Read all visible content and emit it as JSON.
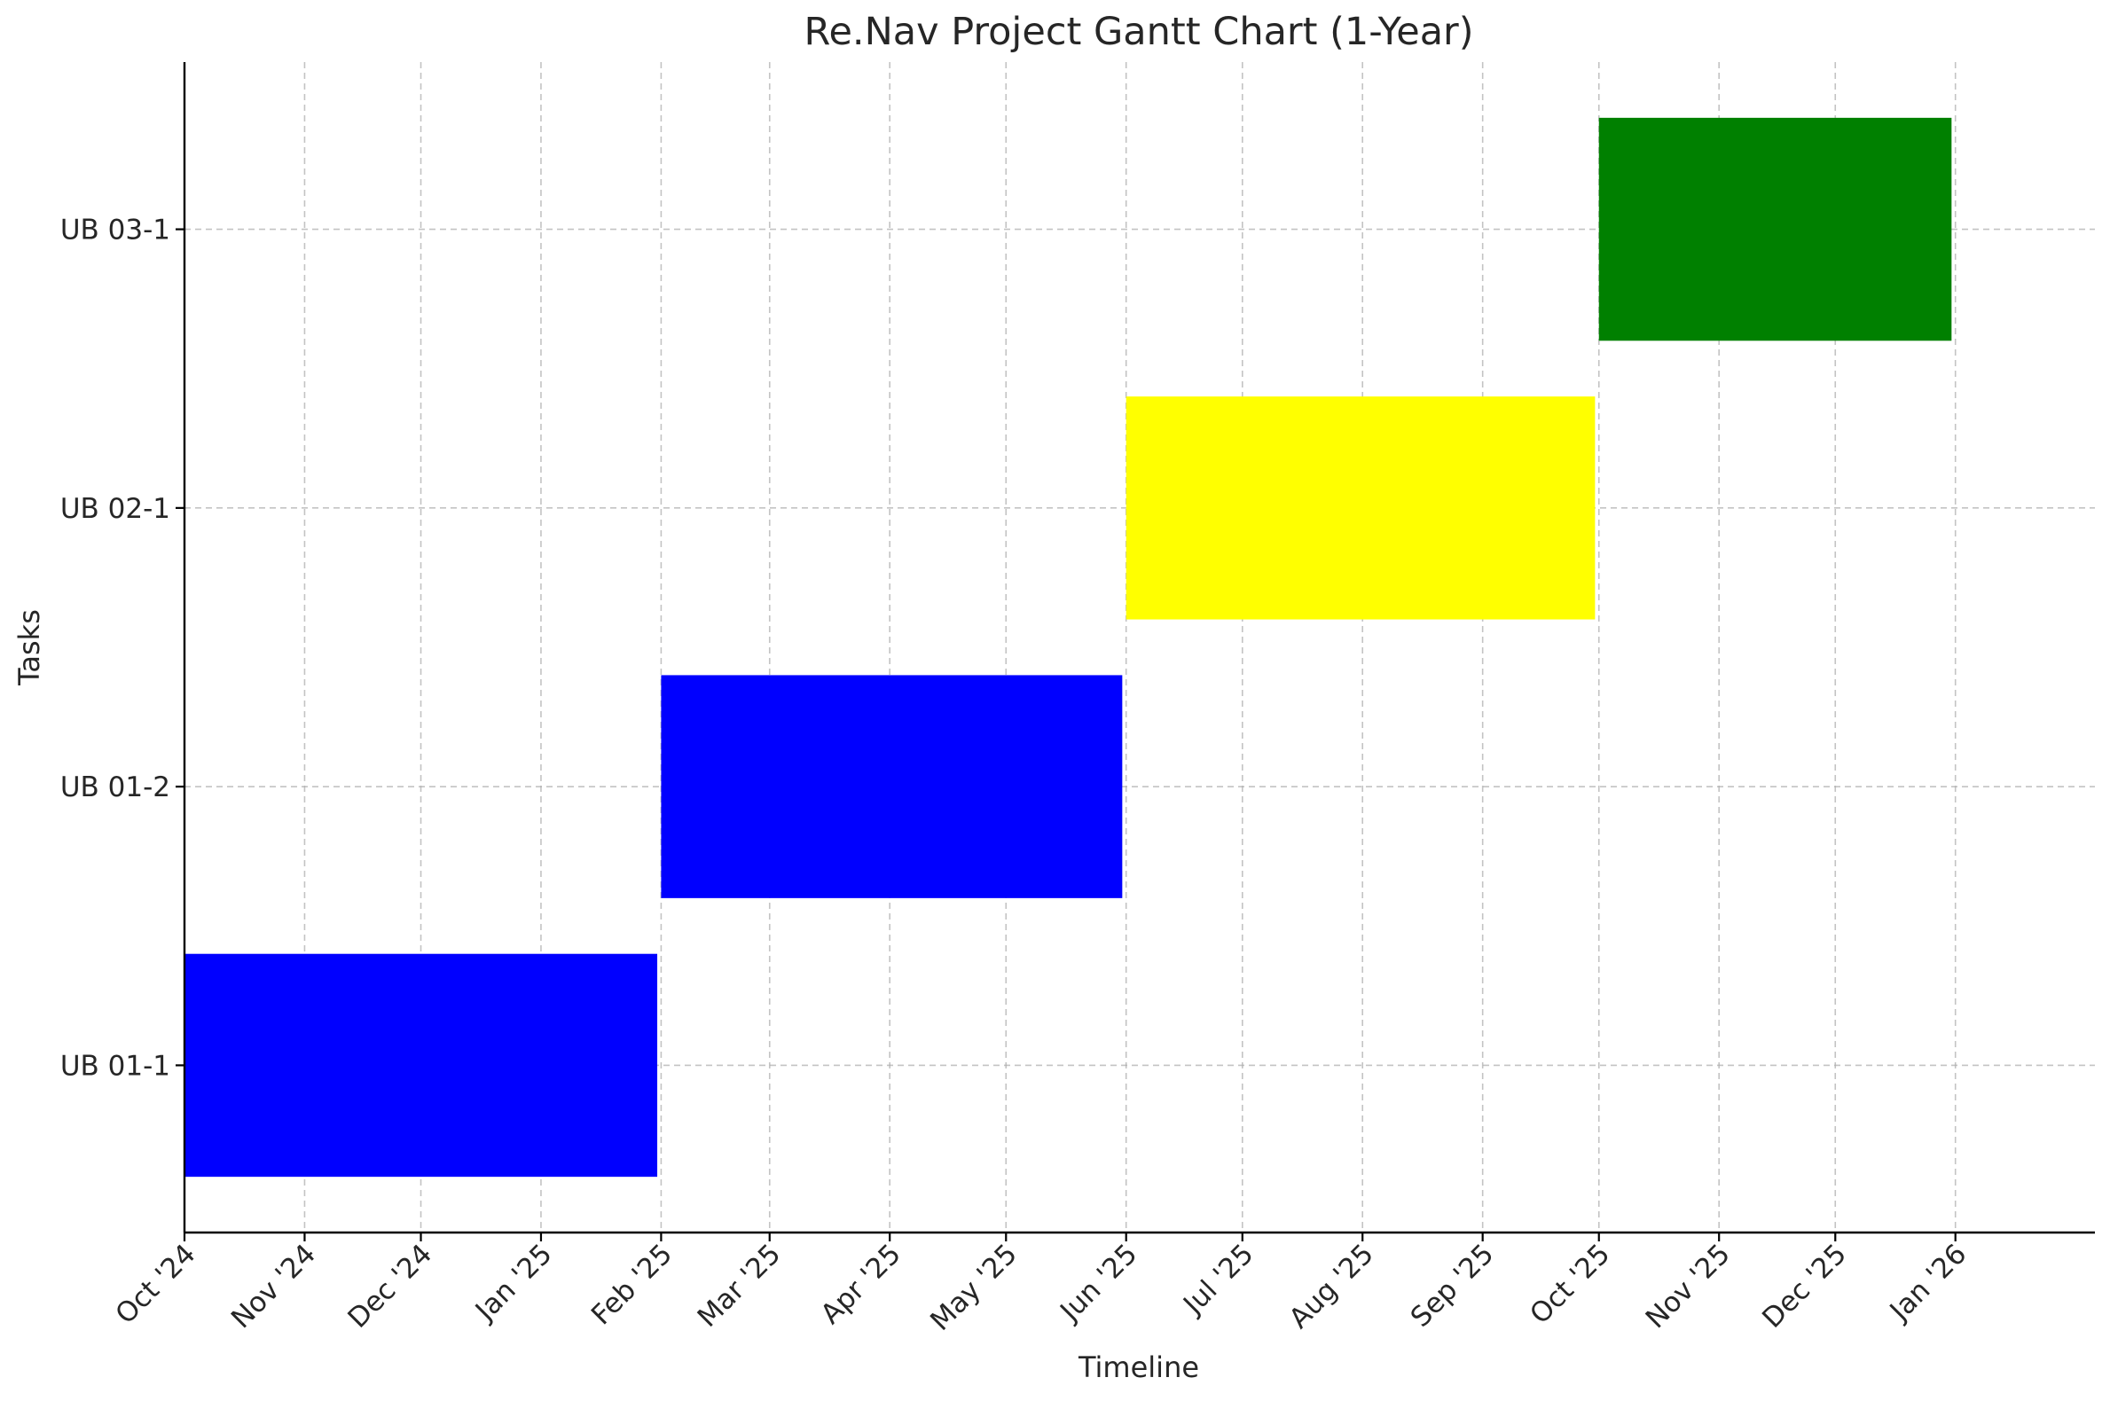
{
  "chart_data": {
    "type": "bar",
    "orientation": "horizontal",
    "title": "Re.Nav Project Gantt Chart (1-Year)",
    "xlabel": "Timeline",
    "ylabel": "Tasks",
    "grid": true,
    "x_ticks": [
      {
        "date": "2024-10-01",
        "label": "Oct '24"
      },
      {
        "date": "2024-11-01",
        "label": "Nov '24"
      },
      {
        "date": "2024-12-01",
        "label": "Dec '24"
      },
      {
        "date": "2025-01-01",
        "label": "Jan '25"
      },
      {
        "date": "2025-02-01",
        "label": "Feb '25"
      },
      {
        "date": "2025-03-01",
        "label": "Mar '25"
      },
      {
        "date": "2025-04-01",
        "label": "Apr '25"
      },
      {
        "date": "2025-05-01",
        "label": "May '25"
      },
      {
        "date": "2025-06-01",
        "label": "Jun '25"
      },
      {
        "date": "2025-07-01",
        "label": "Jul '25"
      },
      {
        "date": "2025-08-01",
        "label": "Aug '25"
      },
      {
        "date": "2025-09-01",
        "label": "Sep '25"
      },
      {
        "date": "2025-10-01",
        "label": "Oct '25"
      },
      {
        "date": "2025-11-01",
        "label": "Nov '25"
      },
      {
        "date": "2025-12-01",
        "label": "Dec '25"
      },
      {
        "date": "2026-01-01",
        "label": "Jan '26"
      }
    ],
    "xlim": [
      "2024-10-01",
      "2026-02-06"
    ],
    "categories": [
      "UB 01-1",
      "UB 01-2",
      "UB 02-1",
      "UB 03-1"
    ],
    "tasks": [
      {
        "label": "UB 01-1",
        "start": "2024-10-01",
        "end": "2025-01-31",
        "color": "#0000ff"
      },
      {
        "label": "UB 01-2",
        "start": "2025-02-01",
        "end": "2025-05-31",
        "color": "#0000ff"
      },
      {
        "label": "UB 02-1",
        "start": "2025-06-01",
        "end": "2025-09-30",
        "color": "#ffff00"
      },
      {
        "label": "UB 03-1",
        "start": "2025-10-01",
        "end": "2025-12-31",
        "color": "#008000"
      }
    ]
  }
}
